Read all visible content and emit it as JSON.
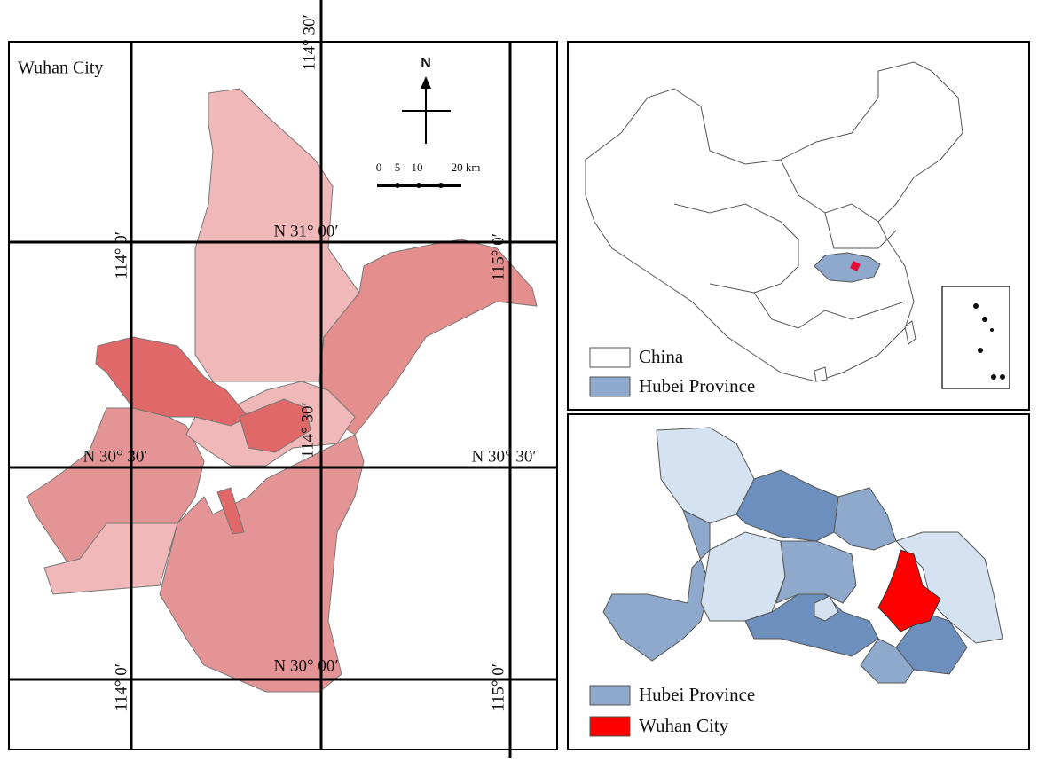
{
  "main_map": {
    "title": "Wuhan City",
    "north": "N",
    "scale_labels": [
      "0",
      "5",
      "10",
      "20 km"
    ],
    "lat_labels": [
      "N 31° 00′",
      "N 30° 30′",
      "N 30° 30′",
      "N 30° 00′"
    ],
    "lon_labels": [
      "114° 30′",
      "114° 0′",
      "115° 0′",
      "114° 30′",
      "114° 0′",
      "115° 0′"
    ]
  },
  "china_inset": {
    "legend": [
      "China",
      "Hubei Province"
    ]
  },
  "hubei_inset": {
    "legend": [
      "Hubei Province",
      "Wuhan City"
    ]
  }
}
